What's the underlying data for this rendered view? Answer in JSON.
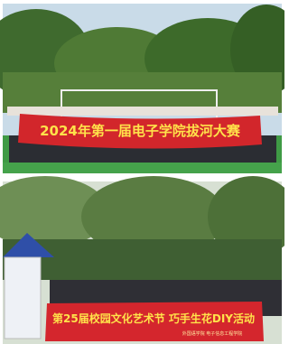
{
  "photos": [
    {
      "banner": "2024年第一届电子学院拔河大赛"
    },
    {
      "banner": "第25届校园文化艺术节 巧手生花DIY活动",
      "banner_subtitle": "外国语学院 电子信息工程学院"
    }
  ]
}
